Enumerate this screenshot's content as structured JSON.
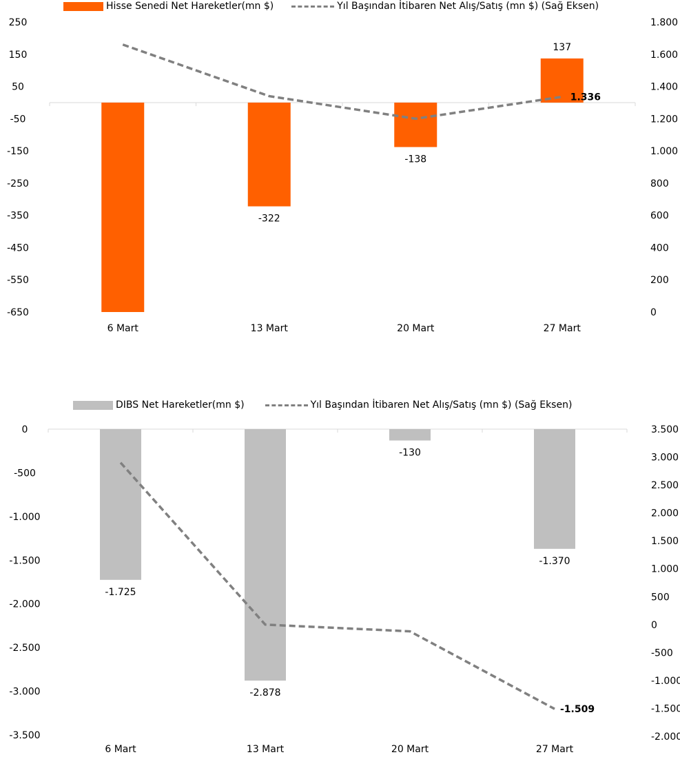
{
  "charts": [
    {
      "bar_series": "Hisse Senedi Net Hareketler(mn $)",
      "line_series": "Yıl Başından İtibaren Net Alış/Satış (mn $) (Sağ Eksen)",
      "bar_color": "#FF6000",
      "line_color": "#808080"
    },
    {
      "bar_series": "DIBS Net Hareketler(mn $)",
      "line_series": "Yıl Başından İtibaren Net Alış/Satış (mn $) (Sağ Eksen)",
      "bar_color": "#BFBFBF",
      "line_color": "#808080"
    }
  ],
  "chart_data": [
    {
      "type": "bar",
      "categories": [
        "6 Mart",
        "13 Mart",
        "20 Mart",
        "27 Mart"
      ],
      "series": [
        {
          "name": "Hisse Senedi Net Hareketler(mn $)",
          "type": "bar",
          "axis": "left",
          "values": [
            -650,
            -322,
            -138,
            137
          ],
          "data_labels": [
            "",
            "-322",
            "-138",
            "137"
          ]
        },
        {
          "name": "Yıl Başından İtibaren Net Alış/Satış (mn $) (Sağ Eksen)",
          "type": "line",
          "axis": "right",
          "style": "dashed",
          "values": [
            1660,
            1340,
            1200,
            1336
          ],
          "data_labels": [
            "",
            "",
            "",
            "1.336"
          ]
        }
      ],
      "y_left": {
        "ylim": [
          -650,
          250
        ],
        "ticks": [
          250,
          150,
          50,
          -50,
          -150,
          -250,
          -350,
          -450,
          -550,
          -650
        ],
        "tick_labels": [
          "250",
          "150",
          "50",
          "-50",
          "-150",
          "-250",
          "-350",
          "-450",
          "-550",
          "-650"
        ]
      },
      "y_right": {
        "ylim": [
          0,
          1800
        ],
        "ticks": [
          1800,
          1600,
          1400,
          1200,
          1000,
          800,
          600,
          400,
          200,
          0
        ],
        "tick_labels": [
          "1.800",
          "1.600",
          "1.400",
          "1.200",
          "1.000",
          "800",
          "600",
          "400",
          "200",
          "0"
        ]
      },
      "legend": "top",
      "grid": false
    },
    {
      "type": "bar",
      "categories": [
        "6 Mart",
        "13 Mart",
        "20 Mart",
        "27 Mart"
      ],
      "series": [
        {
          "name": "DIBS Net Hareketler(mn $)",
          "type": "bar",
          "axis": "left",
          "values": [
            -1725,
            -2878,
            -130,
            -1370
          ],
          "data_labels": [
            "-1.725",
            "-2.878",
            "-130",
            "-1.370"
          ]
        },
        {
          "name": "Yıl Başından İtibaren Net Alış/Satış (mn $) (Sağ Eksen)",
          "type": "line",
          "axis": "right",
          "style": "dashed",
          "values": [
            2900,
            0,
            -120,
            -1509
          ],
          "data_labels": [
            "",
            "",
            "",
            "-1.509"
          ]
        }
      ],
      "y_left": {
        "ylim": [
          -3500,
          0
        ],
        "ticks": [
          0,
          -500,
          -1000,
          -1500,
          -2000,
          -2500,
          -3000,
          -3500
        ],
        "tick_labels": [
          "0",
          "-500",
          "-1.000",
          "-1.500",
          "-2.000",
          "-2.500",
          "-3.000",
          "-3.500"
        ]
      },
      "y_right": {
        "ylim": [
          -2000,
          3500
        ],
        "ticks": [
          3500,
          3000,
          2500,
          2000,
          1500,
          1000,
          500,
          0,
          -500,
          -1000,
          -1500,
          -2000
        ],
        "tick_labels": [
          "3.500",
          "3.000",
          "2.500",
          "2.000",
          "1.500",
          "1.000",
          "500",
          "0",
          "-500",
          "-1.000",
          "-1.500",
          "-2.000"
        ]
      },
      "legend": "top",
      "grid": false
    }
  ]
}
